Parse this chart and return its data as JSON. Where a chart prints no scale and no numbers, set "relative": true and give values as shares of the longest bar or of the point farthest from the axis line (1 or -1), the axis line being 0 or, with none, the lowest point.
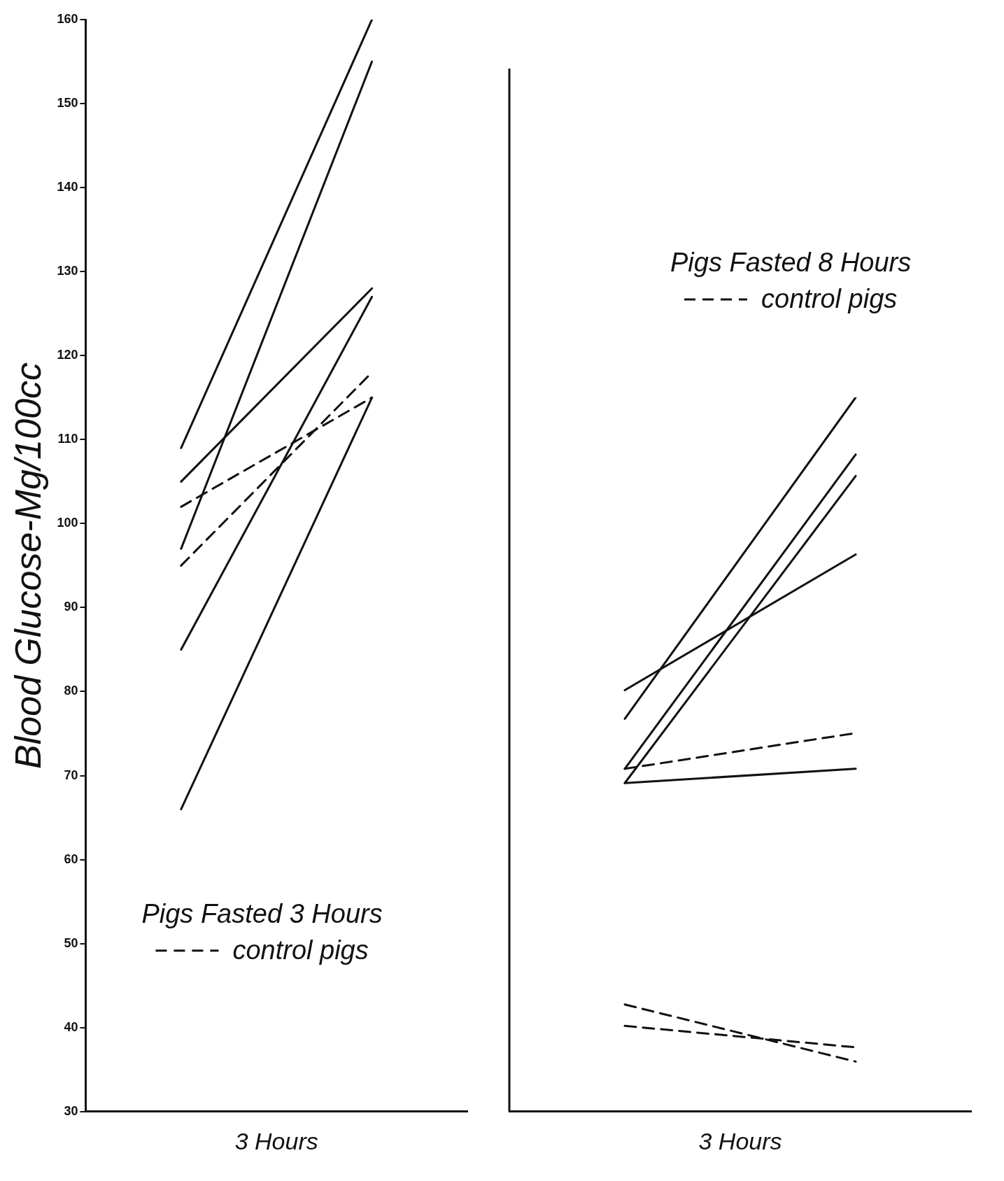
{
  "chart_data": [
    {
      "type": "line",
      "title": "Pigs Fasted 3 Hours",
      "xlabel": "3 Hours",
      "ylabel": "Blood Glucose-Mg/100cc",
      "categories": [
        null,
        null
      ],
      "ylim": [
        30,
        160
      ],
      "yticks": [
        30,
        40,
        50,
        60,
        70,
        80,
        90,
        100,
        110,
        120,
        130,
        140,
        150,
        160
      ],
      "grid": false,
      "legend": "bottom",
      "marker": "none",
      "series": [
        {
          "color": "#111111",
          "line_style": "solid",
          "values": [
            109,
            160
          ]
        },
        {
          "color": "#111111",
          "line_style": "solid",
          "values": [
            97,
            155
          ]
        },
        {
          "color": "#111111",
          "line_style": "solid",
          "values": [
            105,
            128
          ]
        },
        {
          "color": "#111111",
          "line_style": "solid",
          "values": [
            85,
            127
          ]
        },
        {
          "color": "#111111",
          "line_style": "solid",
          "values": [
            66,
            115
          ]
        },
        {
          "name": "control pigs",
          "color": "#111111",
          "line_style": "dashed",
          "values": [
            102,
            115
          ]
        },
        {
          "color": "#111111",
          "line_style": "dashed",
          "values": [
            95,
            118
          ]
        }
      ]
    },
    {
      "type": "line",
      "title": "Pigs Fasted 8 Hours",
      "xlabel": "3 Hours",
      "categories": [
        null,
        null
      ],
      "relative": true,
      "grid": false,
      "legend": "top right",
      "marker": "none",
      "series": [
        {
          "color": "#111111",
          "line_style": "solid",
          "values": [
            0.55,
            1
          ]
        },
        {
          "color": "#111111",
          "line_style": "solid",
          "values": [
            0.59,
            0.78
          ]
        },
        {
          "color": "#111111",
          "line_style": "solid",
          "values": [
            0.48,
            0.92
          ]
        },
        {
          "color": "#111111",
          "line_style": "solid",
          "values": [
            0.46,
            0.89
          ]
        },
        {
          "color": "#111111",
          "line_style": "solid",
          "values": [
            0.46,
            0.48
          ]
        },
        {
          "name": "control pigs",
          "color": "#111111",
          "line_style": "dashed",
          "values": [
            0.48,
            0.53
          ]
        },
        {
          "color": "#111111",
          "line_style": "dashed",
          "values": [
            0.15,
            0.07
          ]
        },
        {
          "color": "#111111",
          "line_style": "dashed",
          "values": [
            0.12,
            0.09
          ]
        }
      ]
    }
  ]
}
